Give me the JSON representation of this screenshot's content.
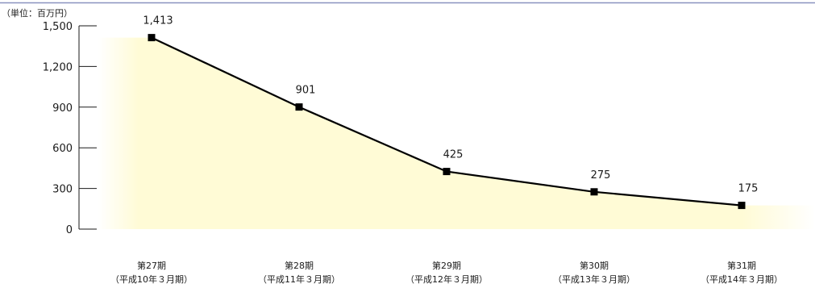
{
  "chart_data": {
    "type": "line",
    "unit": "（単位：百万円）",
    "categories": [
      "第27期",
      "第28期",
      "第29期",
      "第30期",
      "第31期"
    ],
    "periods": [
      "（平成10年３月期）",
      "（平成11年３月期）",
      "（平成12年３月期）",
      "（平成13年３月期）",
      "（平成14年３月期）"
    ],
    "values": [
      1413,
      901,
      425,
      275,
      175
    ],
    "value_labels": [
      "1,413",
      "901",
      "425",
      "275",
      "175"
    ],
    "y_ticks": [
      0,
      300,
      600,
      900,
      1200,
      1500
    ],
    "y_tick_labels": [
      "0",
      "300",
      "600",
      "900",
      "1,200",
      "1,500"
    ],
    "ylim": [
      0,
      1500
    ],
    "title": "",
    "xlabel": "",
    "ylabel": "",
    "grid": false,
    "area_fill": true,
    "colors": {
      "line": "#000000",
      "marker": "#000000",
      "fill": "#fffbd6",
      "top_rule": "#8a93c0",
      "axis": "#1a1a1a"
    }
  }
}
